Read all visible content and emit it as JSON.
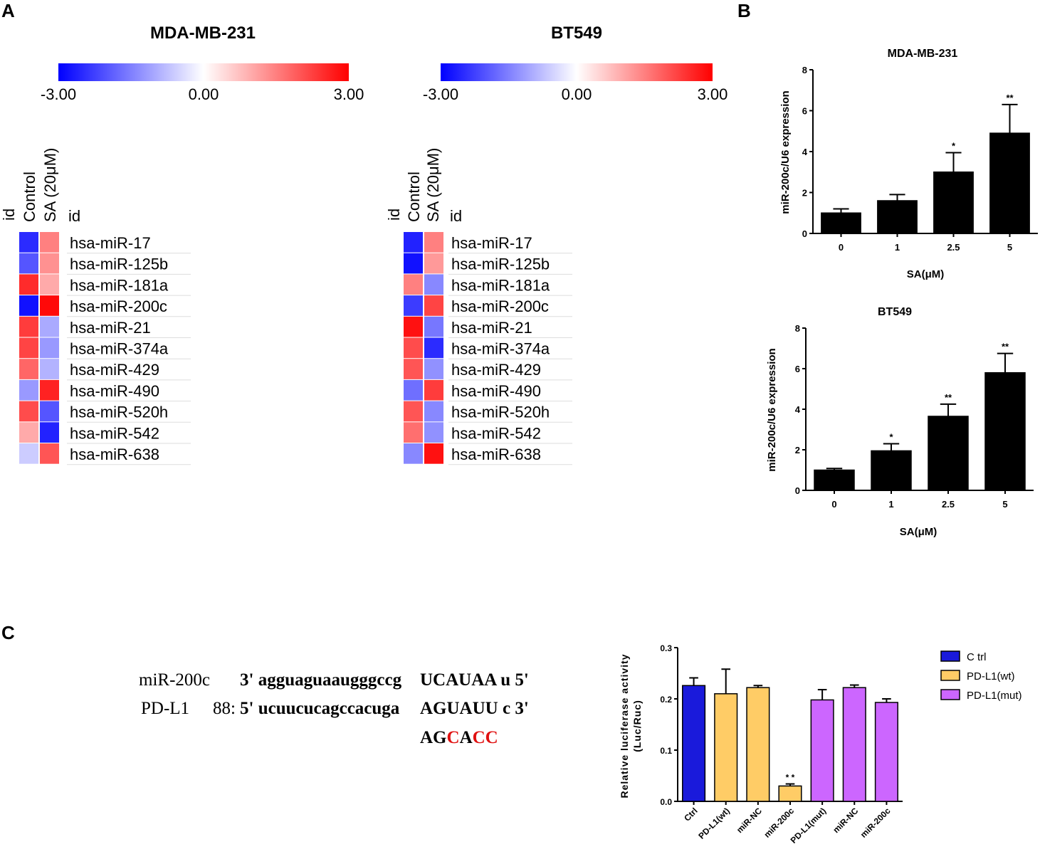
{
  "panel_labels": {
    "a": "A",
    "b": "B",
    "c": "C"
  },
  "colors": {
    "low": "#0000ff",
    "mid": "#ffffff",
    "high": "#ff0000",
    "ctrl": "#1a1adb",
    "wt": "#ffcc66",
    "mut": "#cc66ff",
    "red": "#e01010"
  },
  "chart_data": [
    {
      "type": "heatmap",
      "title": "MDA-MB-231",
      "scale": {
        "min": -3.0,
        "max": 3.0,
        "labels": [
          "-3.00",
          "0.00",
          "3.00"
        ]
      },
      "id_label": "id",
      "columns": [
        "Control",
        "SA (20μM)"
      ],
      "rows": [
        "hsa-miR-17",
        "hsa-miR-125b",
        "hsa-miR-181a",
        "hsa-miR-200c",
        "hsa-miR-21",
        "hsa-miR-374a",
        "hsa-miR-429",
        "hsa-miR-490",
        "hsa-miR-520h",
        "hsa-miR-542",
        "hsa-miR-638"
      ],
      "values": [
        [
          -2.5,
          1.5
        ],
        [
          -2.0,
          1.3
        ],
        [
          2.5,
          1.0
        ],
        [
          -2.8,
          2.9
        ],
        [
          2.3,
          -1.0
        ],
        [
          2.2,
          -1.2
        ],
        [
          1.8,
          -0.9
        ],
        [
          -1.2,
          2.6
        ],
        [
          2.1,
          -2.0
        ],
        [
          1.0,
          -2.6
        ],
        [
          -0.6,
          2.0
        ]
      ]
    },
    {
      "type": "heatmap",
      "title": "BT549",
      "scale": {
        "min": -3.0,
        "max": 3.0,
        "labels": [
          "-3.00",
          "0.00",
          "3.00"
        ]
      },
      "id_label": "id",
      "columns": [
        "Control",
        "SA (20μM)"
      ],
      "rows": [
        "hsa-miR-17",
        "hsa-miR-125b",
        "hsa-miR-181a",
        "hsa-miR-200c",
        "hsa-miR-21",
        "hsa-miR-374a",
        "hsa-miR-429",
        "hsa-miR-490",
        "hsa-miR-520h",
        "hsa-miR-542",
        "hsa-miR-638"
      ],
      "values": [
        [
          -2.6,
          1.5
        ],
        [
          -2.8,
          1.2
        ],
        [
          1.5,
          -1.4
        ],
        [
          -2.3,
          2.2
        ],
        [
          2.8,
          -1.6
        ],
        [
          2.1,
          -2.5
        ],
        [
          2.0,
          -1.3
        ],
        [
          -1.7,
          2.3
        ],
        [
          2.0,
          -1.4
        ],
        [
          1.7,
          -1.3
        ],
        [
          -1.4,
          2.8
        ]
      ]
    },
    {
      "type": "bar",
      "title": "MDA-MB-231",
      "categories": [
        "0",
        "1",
        "2.5",
        "5"
      ],
      "values": [
        1.0,
        1.6,
        3.0,
        4.9
      ],
      "errors": [
        0.2,
        0.3,
        0.95,
        1.4
      ],
      "significance": [
        "",
        "",
        "*",
        "**"
      ],
      "xlabel": "SA(μM)",
      "ylabel": "miR-200c/U6 expression",
      "ylim": [
        0,
        8
      ],
      "yticks": [
        "0",
        "2",
        "4",
        "6",
        "8"
      ]
    },
    {
      "type": "bar",
      "title": "BT549",
      "categories": [
        "0",
        "1",
        "2.5",
        "5"
      ],
      "values": [
        1.0,
        1.95,
        3.65,
        5.8
      ],
      "errors": [
        0.08,
        0.35,
        0.6,
        0.95
      ],
      "significance": [
        "",
        "*",
        "**",
        "**"
      ],
      "xlabel": "SA(μM)",
      "ylabel": "miR-200c/U6 expression",
      "ylim": [
        0,
        8
      ],
      "yticks": [
        "0",
        "2",
        "4",
        "6",
        "8"
      ]
    },
    {
      "type": "bar",
      "title": "",
      "categories": [
        "Ctrl",
        "PD-L1(wt)",
        "miR-NC",
        "miR-200c",
        "PD-L1(mut)",
        "miR-NC",
        "miR-200c"
      ],
      "values": [
        0.226,
        0.21,
        0.222,
        0.03,
        0.198,
        0.222,
        0.193
      ],
      "errors": [
        0.015,
        0.048,
        0.004,
        0.004,
        0.02,
        0.005,
        0.007
      ],
      "groups": [
        0,
        1,
        1,
        1,
        2,
        2,
        2
      ],
      "significance": [
        "",
        "",
        "",
        "* *",
        "",
        "",
        ""
      ],
      "legend": [
        "C trl",
        "PD-L1(wt)",
        "PD-L1(mut)"
      ],
      "legend_position": "right",
      "xlabel": "",
      "ylabel": "Relative luciferase activity",
      "ylabel2": "(Luc/Ruc)",
      "ylim": [
        0,
        0.3
      ],
      "yticks": [
        "0.0",
        "0.1",
        "0.2",
        "0.3"
      ]
    }
  ],
  "sequence": {
    "mir_label": "miR-200c",
    "mir_seq_a": "3' agguaguaaugggccg",
    "mir_seq_b": "UCAUAA u 5'",
    "pdl1_label": "PD-L1",
    "pdl1_pos": "88:",
    "pdl1_seq_a": "5' ucuucucagccacuga",
    "pdl1_seq_b": "AGUAUU c 3'",
    "mut_1": "AG",
    "mut_2": "C",
    "mut_3": "A",
    "mut_4": "CC"
  }
}
